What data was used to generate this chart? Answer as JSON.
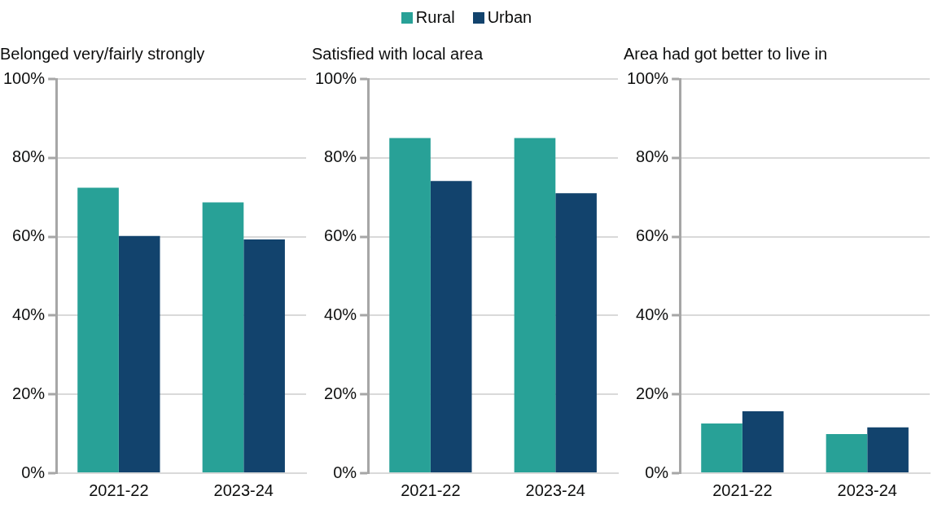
{
  "chart_data": [
    {
      "type": "bar",
      "title": "Belonged very/fairly strongly",
      "categories": [
        "2021-22",
        "2023-24"
      ],
      "series": [
        {
          "name": "Rural",
          "color": "#28a197",
          "values": [
            72.4,
            68.7
          ]
        },
        {
          "name": "Urban",
          "color": "#12436d",
          "values": [
            60.2,
            59.3
          ]
        }
      ],
      "ylim": [
        0,
        100
      ],
      "yticks": [
        {
          "value": 0,
          "label": "0%"
        },
        {
          "value": 20,
          "label": "20%"
        },
        {
          "value": 40,
          "label": "40%"
        },
        {
          "value": 60,
          "label": "60%"
        },
        {
          "value": 80,
          "label": "80%"
        },
        {
          "value": 100,
          "label": "100%"
        }
      ],
      "grid": "y",
      "legend": "top"
    },
    {
      "type": "bar",
      "title": "Satisfied with local area",
      "categories": [
        "2021-22",
        "2023-24"
      ],
      "series": [
        {
          "color": "#28a197",
          "values": [
            85.0,
            85.0
          ]
        },
        {
          "color": "#12436d",
          "values": [
            74.1,
            71.0
          ]
        }
      ],
      "ylim": [
        0,
        100
      ],
      "yticks": [
        {
          "value": 0,
          "label": "0%"
        },
        {
          "value": 20,
          "label": "20%"
        },
        {
          "value": 40,
          "label": "40%"
        },
        {
          "value": 60,
          "label": "60%"
        },
        {
          "value": 80,
          "label": "80%"
        },
        {
          "value": 100,
          "label": "100%"
        }
      ],
      "grid": "y"
    },
    {
      "type": "bar",
      "title": "Area had got better to live in",
      "categories": [
        "2021-22",
        "2023-24"
      ],
      "series": [
        {
          "color": "#28a197",
          "values": [
            12.6,
            9.9
          ]
        },
        {
          "color": "#12436d",
          "values": [
            15.7,
            11.6
          ]
        }
      ],
      "ylim": [
        0,
        100
      ],
      "yticks": [
        {
          "value": 0,
          "label": "0%"
        },
        {
          "value": 20,
          "label": "20%"
        },
        {
          "value": 40,
          "label": "40%"
        },
        {
          "value": 60,
          "label": "60%"
        },
        {
          "value": 80,
          "label": "80%"
        },
        {
          "value": 100,
          "label": "100%"
        }
      ],
      "grid": "y"
    }
  ]
}
